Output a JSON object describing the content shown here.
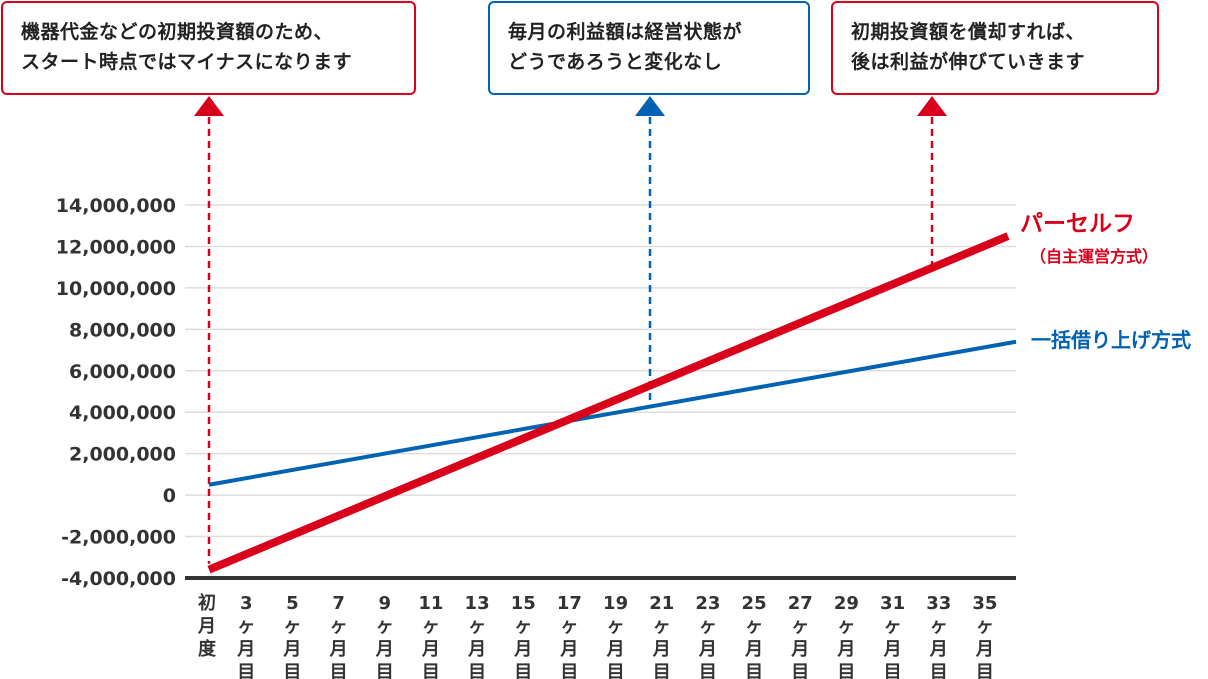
{
  "callouts": [
    {
      "color": "#d9001b",
      "lines": [
        "機器代金などの初期投資額のため、",
        "スタート時点ではマイナスになります"
      ]
    },
    {
      "color": "#0062b1",
      "lines": [
        "毎月の利益額は経営状態が",
        "どうであろうと変化なし"
      ]
    },
    {
      "color": "#d9001b",
      "lines": [
        "初期投資額を償却すれば、",
        "後は利益が伸びていきます"
      ]
    }
  ],
  "chart_data": {
    "type": "line",
    "title": "",
    "xlabel": "",
    "ylabel": "",
    "x": [
      0,
      36
    ],
    "x_tick_labels": [
      {
        "at": 0,
        "label": "初月度"
      },
      {
        "at": 3,
        "label": "3ヶ月目"
      },
      {
        "at": 5,
        "label": "5ヶ月目"
      },
      {
        "at": 7,
        "label": "7ヶ月目"
      },
      {
        "at": 9,
        "label": "9ヶ月目"
      },
      {
        "at": 11,
        "label": "11ヶ月目"
      },
      {
        "at": 13,
        "label": "13ヶ月目"
      },
      {
        "at": 15,
        "label": "15ヶ月目"
      },
      {
        "at": 17,
        "label": "17ヶ月目"
      },
      {
        "at": 19,
        "label": "19ヶ月目"
      },
      {
        "at": 21,
        "label": "21ヶ月目"
      },
      {
        "at": 23,
        "label": "23ヶ月目"
      },
      {
        "at": 25,
        "label": "25ヶ月目"
      },
      {
        "at": 27,
        "label": "27ヶ月目"
      },
      {
        "at": 29,
        "label": "29ヶ月目"
      },
      {
        "at": 31,
        "label": "31ヶ月目"
      },
      {
        "at": 33,
        "label": "33ヶ月目"
      },
      {
        "at": 35,
        "label": "35ヶ月目"
      }
    ],
    "y_ticks": [
      -4000000,
      -2000000,
      0,
      2000000,
      4000000,
      6000000,
      8000000,
      10000000,
      12000000,
      14000000
    ],
    "y_tick_labels": [
      "-4,000,000",
      "-2,000,000",
      "0",
      "2,000,000",
      "4,000,000",
      "6,000,000",
      "8,000,000",
      "10,000,000",
      "12,000,000",
      "14,000,000"
    ],
    "ylim": [
      -4000000,
      14000000
    ],
    "grid": true,
    "series": [
      {
        "name": "パーセルフ",
        "subname": "（自主運営方式）",
        "color": "#d9001b",
        "x": [
          0,
          36
        ],
        "y": [
          -3600000,
          12500000
        ]
      },
      {
        "name": "一括借り上げ方式",
        "color": "#0062b1",
        "x": [
          0,
          36
        ],
        "y": [
          500000,
          7400000
        ]
      }
    ],
    "annotation_arrows": [
      {
        "at": 0,
        "color": "#d9001b",
        "to_series": 0
      },
      {
        "at": 20,
        "color": "#0062b1",
        "to_series": 1
      },
      {
        "at": 32,
        "color": "#d9001b",
        "to_series": 0
      }
    ]
  }
}
